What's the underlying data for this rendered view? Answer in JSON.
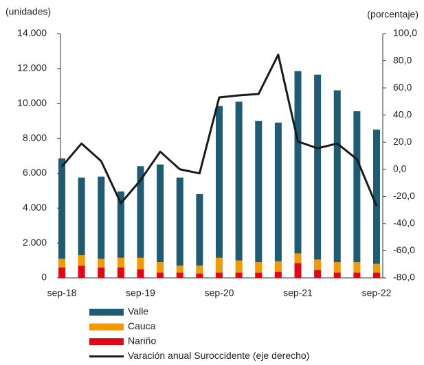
{
  "chart_data": {
    "type": "bar-line",
    "y_label": "(unidades)",
    "y2_label": "(porcentaje)",
    "categories": [
      "sep-18",
      null,
      null,
      null,
      "sep-19",
      null,
      null,
      null,
      "sep-20",
      null,
      null,
      null,
      "sep-21",
      null,
      null,
      null,
      "sep-22"
    ],
    "series": [
      {
        "name": "Valle",
        "type": "bar",
        "color": "#1f5c73",
        "values": [
          5750,
          4450,
          4700,
          3800,
          5250,
          5600,
          5050,
          4100,
          8700,
          9100,
          8100,
          7950,
          10450,
          10600,
          9850,
          8650,
          7700
        ]
      },
      {
        "name": "Cauca",
        "type": "bar",
        "color": "#f29a00",
        "values": [
          500,
          600,
          500,
          550,
          650,
          600,
          400,
          450,
          850,
          700,
          600,
          600,
          550,
          600,
          600,
          600,
          500
        ]
      },
      {
        "name": "Nariño",
        "type": "bar",
        "color": "#e30613",
        "values": [
          600,
          700,
          600,
          600,
          500,
          300,
          300,
          250,
          300,
          300,
          300,
          350,
          850,
          450,
          300,
          300,
          300
        ]
      },
      {
        "name": "Varación anual Suroccidente (eje derecho)",
        "type": "line",
        "axis": "y2",
        "color": "#1a1a1a",
        "values": [
          2,
          19,
          6,
          -25,
          -8,
          13,
          0,
          -3,
          53,
          54.5,
          55.5,
          84.5,
          20.5,
          15.5,
          19,
          7.5,
          -27
        ]
      }
    ],
    "ylim": [
      0,
      14000
    ],
    "yticks": [
      {
        "value": 0,
        "label": "0"
      },
      {
        "value": 2000,
        "label": "2.000"
      },
      {
        "value": 4000,
        "label": "4.000"
      },
      {
        "value": 6000,
        "label": "6.000"
      },
      {
        "value": 8000,
        "label": "8.000"
      },
      {
        "value": 10000,
        "label": "10.000"
      },
      {
        "value": 12000,
        "label": "12.000"
      },
      {
        "value": 14000,
        "label": "14.000"
      }
    ],
    "y2lim": [
      -80,
      100
    ],
    "y2ticks": [
      {
        "value": -80,
        "label": "-80,0"
      },
      {
        "value": -60,
        "label": "-60,0"
      },
      {
        "value": -40,
        "label": "-40,0"
      },
      {
        "value": -20,
        "label": "-20,0"
      },
      {
        "value": 0,
        "label": "0,0"
      },
      {
        "value": 20,
        "label": "20,0"
      },
      {
        "value": 40,
        "label": "40,0"
      },
      {
        "value": 60,
        "label": "60,0"
      },
      {
        "value": 80,
        "label": "80,0"
      },
      {
        "value": 100,
        "label": "100,0"
      }
    ],
    "stacked": true,
    "legend": "bottom"
  }
}
